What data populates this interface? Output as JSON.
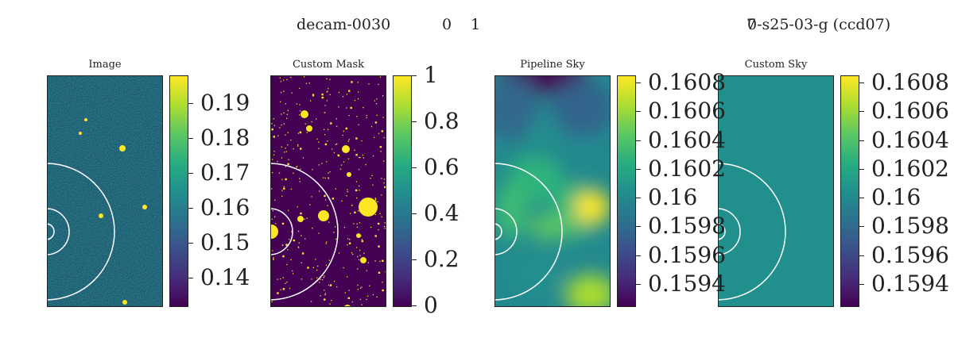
{
  "suptitle": {
    "left": "decam-0030",
    "cb_min": "0",
    "cb_max": "1",
    "right_a": "7",
    "right_b": "0-s25-03-g (ccd07)"
  },
  "chart_data": [
    {
      "type": "heatmap",
      "title": "Image",
      "colormap": "viridis",
      "clim": [
        0.132,
        0.198
      ],
      "colorbar_ticks": [
        0.14,
        0.15,
        0.16,
        0.17,
        0.18,
        0.19
      ],
      "colorbar_labels": [
        "0.14",
        "0.15",
        "0.16",
        "0.17",
        "0.18",
        "0.19"
      ]
    },
    {
      "type": "heatmap",
      "title": "Custom Mask",
      "colormap": "viridis",
      "clim": [
        0,
        1
      ],
      "colorbar_ticks": [
        0,
        0.2,
        0.4,
        0.6,
        0.8,
        1
      ],
      "colorbar_labels": [
        "0",
        "0.2",
        "0.4",
        "0.6",
        "0.8",
        "1"
      ]
    },
    {
      "type": "heatmap",
      "title": "Pipeline Sky",
      "colormap": "viridis",
      "clim": [
        0.15925,
        0.16085
      ],
      "colorbar_ticks": [
        0.1594,
        0.1596,
        0.1598,
        0.16,
        0.1602,
        0.1604,
        0.1606,
        0.1608
      ],
      "colorbar_labels": [
        "0.1594",
        "0.1596",
        "0.1598",
        "0.16",
        "0.1602",
        "0.1604",
        "0.1606",
        "0.1608"
      ]
    },
    {
      "type": "heatmap",
      "title": "Custom Sky",
      "colormap": "viridis",
      "clim": [
        0.15925,
        0.16085
      ],
      "colorbar_ticks": [
        0.1594,
        0.1596,
        0.1598,
        0.16,
        0.1602,
        0.1604,
        0.1606,
        0.1608
      ],
      "colorbar_labels": [
        "0.1594",
        "0.1596",
        "0.1598",
        "0.16",
        "0.1602",
        "0.1604",
        "0.1606",
        "0.1608"
      ]
    }
  ]
}
